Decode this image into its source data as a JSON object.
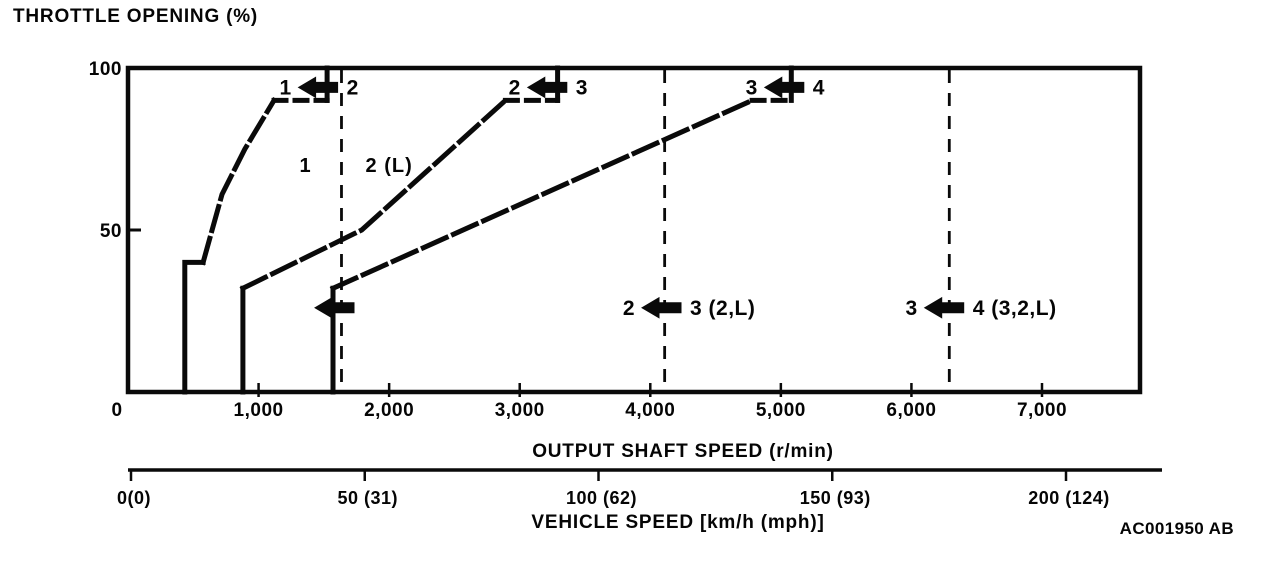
{
  "footer_code": "AC001950 AB",
  "chart_data": {
    "type": "line",
    "title": "THROTTLE OPENING (%)",
    "xlabel": "OUTPUT SHAFT SPEED (r/min)",
    "x2label": "VEHICLE SPEED [km/h (mph)]",
    "ylabel": "THROTTLE OPENING (%)",
    "xlim": [
      0,
      7750
    ],
    "ylim": [
      0,
      100
    ],
    "x2lim": [
      0,
      220
    ],
    "grid": false,
    "x_ticks": [
      {
        "v": 0,
        "label": "0",
        "dx": -11
      },
      {
        "v": 1000,
        "label": "1,000"
      },
      {
        "v": 2000,
        "label": "2,000"
      },
      {
        "v": 3000,
        "label": "3,000"
      },
      {
        "v": 4000,
        "label": "4,000"
      },
      {
        "v": 5000,
        "label": "5,000"
      },
      {
        "v": 6000,
        "label": "6,000"
      },
      {
        "v": 7000,
        "label": "7,000"
      }
    ],
    "y_ticks": [
      {
        "v": 50,
        "label": "50"
      },
      {
        "v": 100,
        "label": "100"
      }
    ],
    "x2_ticks": [
      {
        "v": 0,
        "label": "0(0)"
      },
      {
        "v": 50,
        "label": "50 (31)"
      },
      {
        "v": 100,
        "label": "100 (62)"
      },
      {
        "v": 150,
        "label": "150 (93)"
      },
      {
        "v": 200,
        "label": "200 (124)"
      }
    ],
    "series": [
      {
        "name": "downshift-2-to-1",
        "segments": [
          {
            "style": "solid",
            "pts": [
              [
                435,
                0
              ],
              [
                435,
                40
              ],
              [
                575,
                40
              ]
            ]
          },
          {
            "style": "long-dash",
            "pts": [
              [
                575,
                40
              ],
              [
                720,
                61
              ],
              [
                895,
                75
              ],
              [
                1118,
                90
              ]
            ]
          },
          {
            "style": "short-dash",
            "pts": [
              [
                1118,
                90
              ],
              [
                1525,
                90
              ]
            ]
          },
          {
            "style": "solid",
            "pts": [
              [
                1525,
                90
              ],
              [
                1525,
                100
              ]
            ]
          }
        ]
      },
      {
        "name": "downshift-3-to-2",
        "segments": [
          {
            "style": "solid",
            "pts": [
              [
                880,
                0
              ],
              [
                880,
                32
              ]
            ]
          },
          {
            "style": "long-dash",
            "pts": [
              [
                880,
                32
              ],
              [
                1790,
                50
              ],
              [
                2890,
                90
              ]
            ]
          },
          {
            "style": "short-dash",
            "pts": [
              [
                2890,
                90
              ],
              [
                3290,
                90
              ]
            ]
          },
          {
            "style": "solid",
            "pts": [
              [
                3290,
                90
              ],
              [
                3290,
                100
              ]
            ]
          }
        ]
      },
      {
        "name": "downshift-4-to-3",
        "segments": [
          {
            "style": "solid",
            "pts": [
              [
                1570,
                0
              ],
              [
                1570,
                32
              ]
            ]
          },
          {
            "style": "long-dash",
            "pts": [
              [
                1570,
                32
              ],
              [
                4780,
                90
              ]
            ]
          },
          {
            "style": "short-dash",
            "pts": [
              [
                4780,
                90
              ],
              [
                5080,
                90
              ]
            ]
          },
          {
            "style": "solid",
            "pts": [
              [
                5080,
                90
              ],
              [
                5080,
                100
              ]
            ]
          }
        ]
      }
    ],
    "coast_lines": [
      {
        "name": "coast-downshift-1-2",
        "x": 1635
      },
      {
        "name": "coast-downshift-2-3",
        "x": 4110
      },
      {
        "name": "coast-downshift-3-4",
        "x": 6290
      }
    ],
    "arrows": [
      {
        "name": "arrow-1-from-2-top",
        "x": 1460,
        "y": 94,
        "left": "1",
        "right": "2"
      },
      {
        "name": "arrow-2-from-3-top",
        "x": 3215,
        "y": 94,
        "left": "2",
        "right": "3"
      },
      {
        "name": "arrow-3-from-4-top",
        "x": 5030,
        "y": 94,
        "left": "3",
        "right": "4"
      },
      {
        "name": "arrow-coast-1-2",
        "x": 1585,
        "y": 26,
        "left": "",
        "right": ""
      },
      {
        "name": "arrow-coast-2-3",
        "x": 4090,
        "y": 26,
        "left": "2",
        "right": "3 (2,L)"
      },
      {
        "name": "arrow-coast-3-4",
        "x": 6255,
        "y": 26,
        "left": "3",
        "right": "4 (3,2,L)"
      }
    ],
    "region_labels": [
      {
        "text": "1",
        "x": 1360,
        "y": 70
      },
      {
        "text": "2 (L)",
        "x": 2000,
        "y": 70
      }
    ],
    "ink_color": "#0a0a0a"
  }
}
